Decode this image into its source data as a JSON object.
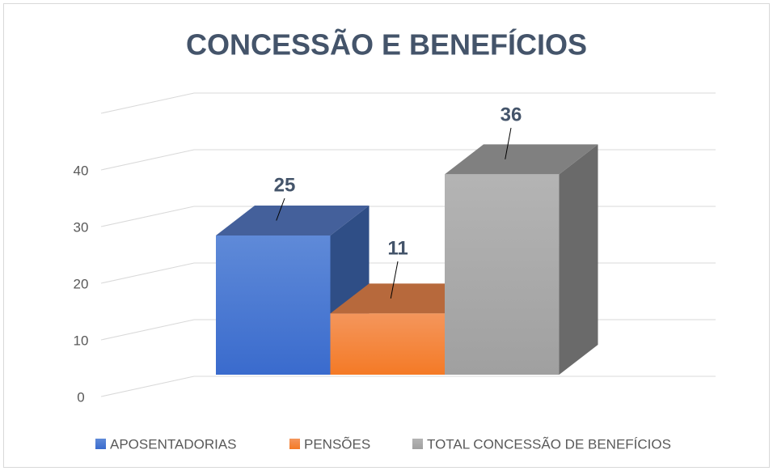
{
  "chart_data": {
    "type": "bar3d",
    "title": "CONCESSÃO E BENEFÍCIOS",
    "categories": [
      null
    ],
    "series": [
      {
        "name": "APOSENTADORIAS",
        "color": "#4472c4",
        "values": [
          25
        ]
      },
      {
        "name": "PENSÕES",
        "color": "#ed7d31",
        "values": [
          11
        ]
      },
      {
        "name": "TOTAL CONCESSÃO DE BENEFÍCIOS",
        "color": "#a5a5a5",
        "values": [
          36
        ]
      }
    ],
    "ylim": [
      0,
      50
    ],
    "yticks": [
      0,
      10,
      20,
      30,
      40
    ],
    "grid": true,
    "legend": "bottom"
  }
}
